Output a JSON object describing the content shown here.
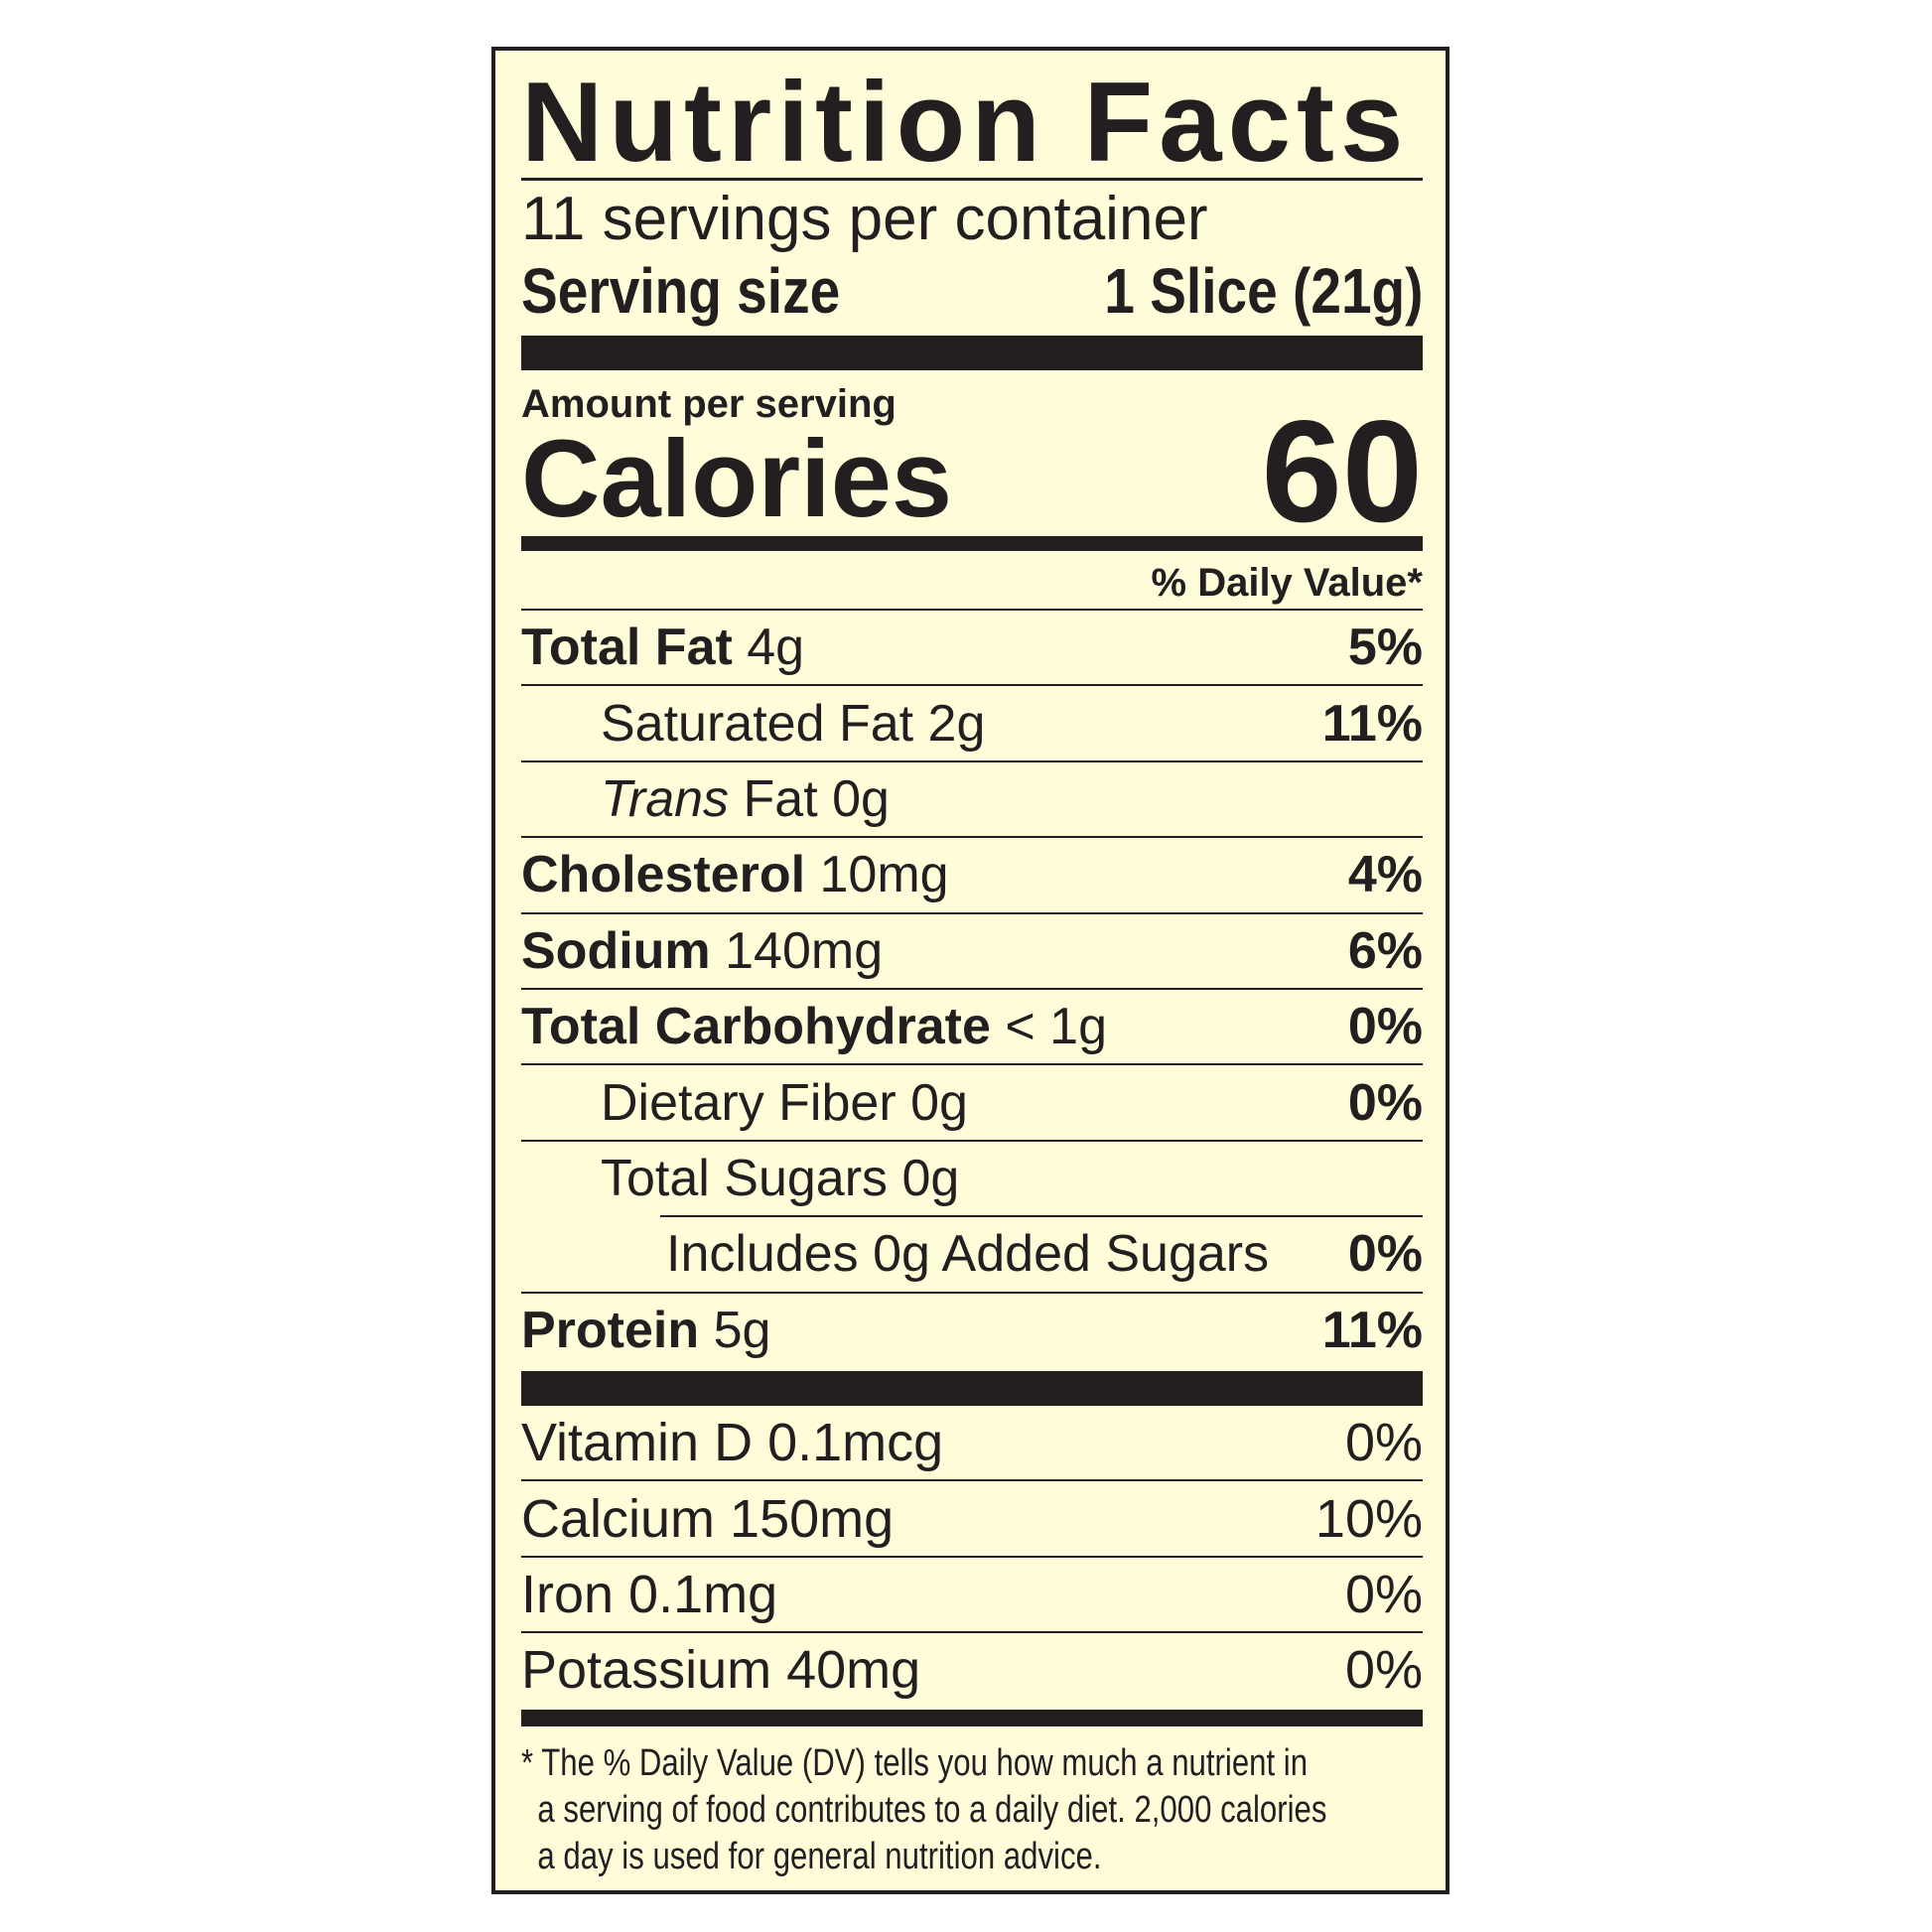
{
  "title": "Nutrition Facts",
  "servings_per_container": "11 servings per container",
  "serving_size": {
    "label": "Serving size",
    "value": "1 Slice (21g)"
  },
  "amount_per_serving": "Amount per serving",
  "calories": {
    "label": "Calories",
    "value": "60"
  },
  "daily_value_header": "% Daily Value*",
  "nutrients": [
    {
      "name": "Total Fat",
      "amount": "4g",
      "dv": "5%"
    },
    {
      "name": "Saturated Fat",
      "amount": "2g",
      "dv": "11%"
    },
    {
      "name": "Trans",
      "name_suffix": "Fat",
      "amount": "0g",
      "dv": ""
    },
    {
      "name": "Cholesterol",
      "amount": "10mg",
      "dv": "4%"
    },
    {
      "name": "Sodium",
      "amount": "140mg",
      "dv": "6%"
    },
    {
      "name": "Total Carbohydrate",
      "amount": "< 1g",
      "dv": "0%"
    },
    {
      "name": "Dietary Fiber",
      "amount": "0g",
      "dv": "0%"
    },
    {
      "name": "Total Sugars",
      "amount": "0g",
      "dv": ""
    },
    {
      "name": "Includes 0g Added Sugars",
      "amount": "",
      "dv": "0%"
    },
    {
      "name": "Protein",
      "amount": "5g",
      "dv": "11%"
    }
  ],
  "vitamins": [
    {
      "name": "Vitamin D 0.1mcg",
      "dv": "0%"
    },
    {
      "name": "Calcium 150mg",
      "dv": "10%"
    },
    {
      "name": "Iron 0.1mg",
      "dv": "0%"
    },
    {
      "name": "Potassium 40mg",
      "dv": "0%"
    }
  ],
  "footnote": [
    "* The % Daily Value (DV) tells you how much a nutrient in",
    "a serving of food contributes to a daily diet. 2,000 calories",
    "a day is used for general nutrition advice."
  ],
  "colors": {
    "background": "#fefcd9",
    "ink": "#231f20"
  }
}
